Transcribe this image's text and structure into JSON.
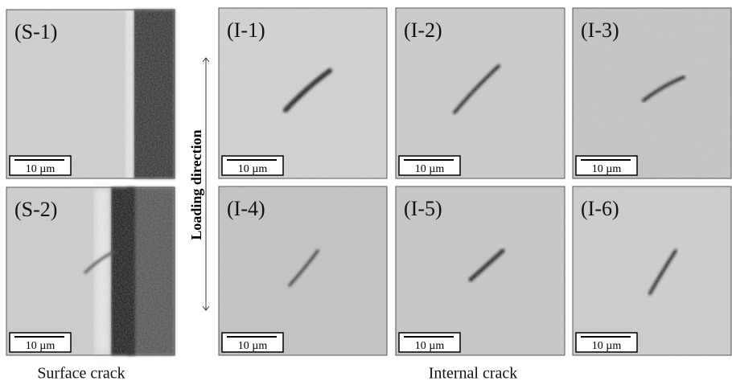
{
  "panels": [
    {
      "label": "(S-1)",
      "scale_bar": "10 µm"
    },
    {
      "label": "(S-2)",
      "scale_bar": "10 µm"
    },
    {
      "label": "(I-1)",
      "scale_bar": "10 µm"
    },
    {
      "label": "(I-2)",
      "scale_bar": "10 µm"
    },
    {
      "label": "(I-3)",
      "scale_bar": "10 µm"
    },
    {
      "label": "(I-4)",
      "scale_bar": "10 µm"
    },
    {
      "label": "(I-5)",
      "scale_bar": "10 µm"
    },
    {
      "label": "(I-6)",
      "scale_bar": "10 µm"
    }
  ],
  "loading_direction": "Loading direction",
  "captions": [
    "Surface crack",
    "Internal crack"
  ]
}
